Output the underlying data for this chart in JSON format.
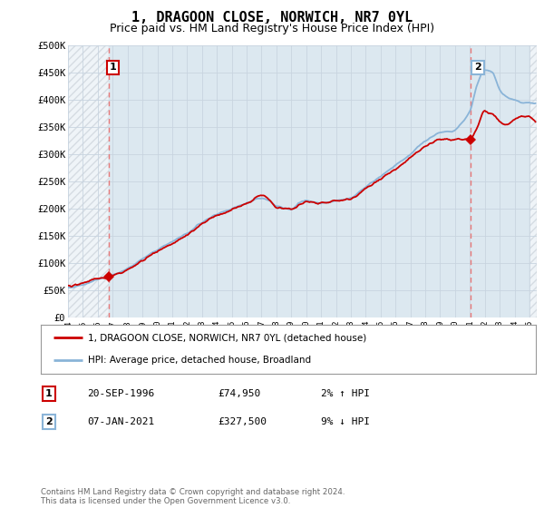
{
  "title": "1, DRAGOON CLOSE, NORWICH, NR7 0YL",
  "subtitle": "Price paid vs. HM Land Registry's House Price Index (HPI)",
  "ylabel_ticks": [
    "£0",
    "£50K",
    "£100K",
    "£150K",
    "£200K",
    "£250K",
    "£300K",
    "£350K",
    "£400K",
    "£450K",
    "£500K"
  ],
  "ytick_values": [
    0,
    50000,
    100000,
    150000,
    200000,
    250000,
    300000,
    350000,
    400000,
    450000,
    500000
  ],
  "ylim": [
    0,
    500000
  ],
  "xlim_start": 1994.0,
  "xlim_end": 2025.5,
  "xtick_years": [
    1994,
    1995,
    1996,
    1997,
    1998,
    1999,
    2000,
    2001,
    2002,
    2003,
    2004,
    2005,
    2006,
    2007,
    2008,
    2009,
    2010,
    2011,
    2012,
    2013,
    2014,
    2015,
    2016,
    2017,
    2018,
    2019,
    2020,
    2021,
    2022,
    2023,
    2024,
    2025
  ],
  "sale1_x": 1996.72,
  "sale1_y": 74950,
  "sale2_x": 2021.02,
  "sale2_y": 327500,
  "sale_color": "#cc0000",
  "hpi_color": "#8ab4d8",
  "vline_color": "#e87878",
  "grid_color": "#c8d4e0",
  "plot_bg": "#dce8f0",
  "hatch_color": "#c0c8d0",
  "legend_label_red": "1, DRAGOON CLOSE, NORWICH, NR7 0YL (detached house)",
  "legend_label_blue": "HPI: Average price, detached house, Broadland",
  "table_row1": [
    "1",
    "20-SEP-1996",
    "£74,950",
    "2% ↑ HPI"
  ],
  "table_row2": [
    "2",
    "07-JAN-2021",
    "£327,500",
    "9% ↓ HPI"
  ],
  "footnote": "Contains HM Land Registry data © Crown copyright and database right 2024.\nThis data is licensed under the Open Government Licence v3.0.",
  "title_fontsize": 11,
  "subtitle_fontsize": 9
}
